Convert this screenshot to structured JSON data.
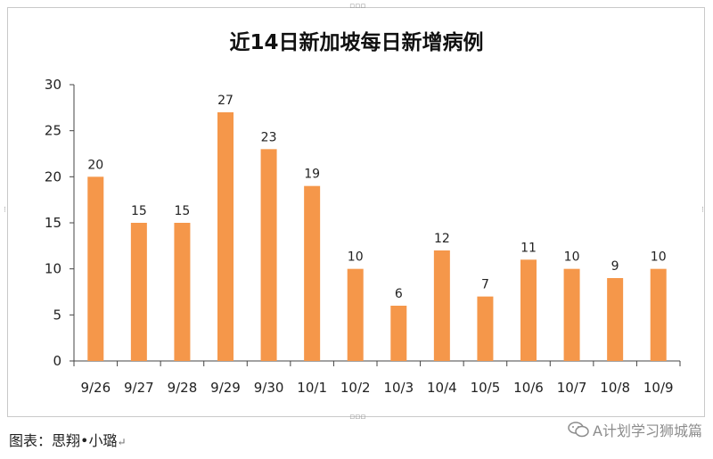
{
  "chart_data": {
    "type": "bar",
    "title": "近14日新加坡每日新增病例",
    "categories": [
      "9/26",
      "9/27",
      "9/28",
      "9/29",
      "9/30",
      "10/1",
      "10/2",
      "10/3",
      "10/4",
      "10/5",
      "10/6",
      "10/7",
      "10/8",
      "10/9"
    ],
    "values": [
      20,
      15,
      15,
      27,
      23,
      19,
      10,
      6,
      12,
      7,
      11,
      10,
      9,
      10
    ],
    "ylim": [
      0,
      30
    ],
    "yticks": [
      0,
      5,
      10,
      15,
      20,
      25,
      30
    ],
    "xlabel": "",
    "ylabel": "",
    "grid": false,
    "bar_color": "#f5974a",
    "data_labels": true
  },
  "caption": "图表：思翔•小璐",
  "caption_mark": "↵",
  "watermark": "A计划学习狮城篇",
  "watermark_icon": "wechat-icon"
}
